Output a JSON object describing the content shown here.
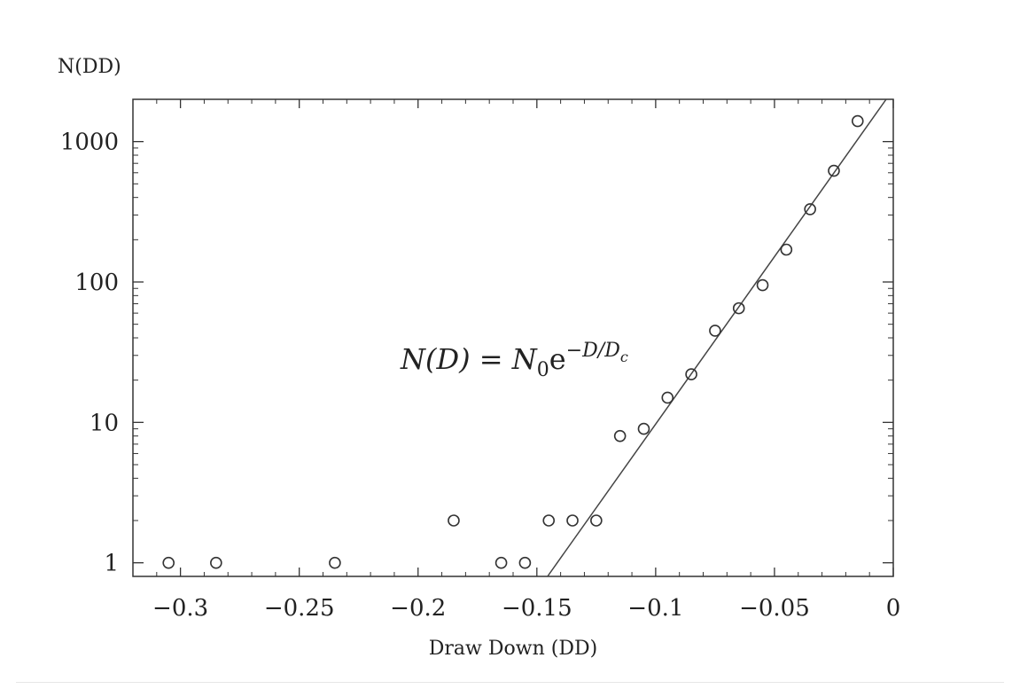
{
  "chart_data": {
    "type": "scatter",
    "title": "",
    "xlabel": "Draw Down (DD)",
    "ylabel": "N(DD)",
    "xlim": [
      -0.32,
      0
    ],
    "ylim": [
      0.8,
      2000
    ],
    "yscale": "log",
    "x_ticks": [
      -0.3,
      -0.25,
      -0.2,
      -0.15,
      -0.1,
      -0.05,
      0
    ],
    "x_tick_labels": [
      "−0.3",
      "−0.25",
      "−0.2",
      "−0.15",
      "−0.1",
      "−0.05",
      "0"
    ],
    "y_ticks": [
      1,
      10,
      100,
      1000
    ],
    "y_tick_labels": [
      "1",
      "10",
      "100",
      "1000"
    ],
    "grid": false,
    "points": [
      {
        "x": -0.305,
        "y": 1
      },
      {
        "x": -0.285,
        "y": 1
      },
      {
        "x": -0.235,
        "y": 1
      },
      {
        "x": -0.185,
        "y": 2
      },
      {
        "x": -0.165,
        "y": 1
      },
      {
        "x": -0.155,
        "y": 1
      },
      {
        "x": -0.145,
        "y": 2
      },
      {
        "x": -0.135,
        "y": 2
      },
      {
        "x": -0.125,
        "y": 2
      },
      {
        "x": -0.115,
        "y": 8
      },
      {
        "x": -0.105,
        "y": 9
      },
      {
        "x": -0.095,
        "y": 15
      },
      {
        "x": -0.085,
        "y": 22
      },
      {
        "x": -0.075,
        "y": 45
      },
      {
        "x": -0.065,
        "y": 65
      },
      {
        "x": -0.055,
        "y": 95
      },
      {
        "x": -0.045,
        "y": 170
      },
      {
        "x": -0.035,
        "y": 330
      },
      {
        "x": -0.025,
        "y": 620
      },
      {
        "x": -0.015,
        "y": 1400
      }
    ],
    "fit_line": {
      "x": [
        -0.1455,
        -0.003
      ],
      "y": [
        0.8,
        2000
      ]
    },
    "annotation": {
      "base": "N(D) = N",
      "sub": "0",
      "e": "e",
      "sup": "−D/D",
      "supsub": "c"
    }
  }
}
